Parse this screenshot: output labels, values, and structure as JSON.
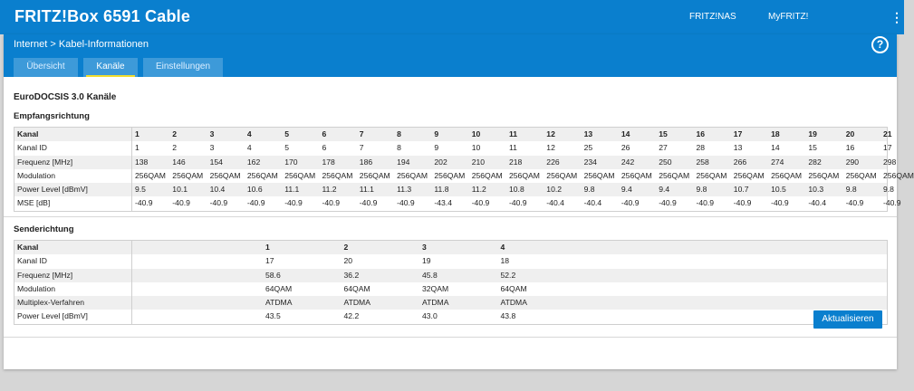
{
  "header": {
    "title": "FRITZ!Box 6591 Cable",
    "nav": [
      "FRITZ!NAS",
      "MyFRITZ!"
    ]
  },
  "breadcrumb": {
    "parent": "Internet",
    "separator": ">",
    "current": "Kabel-Informationen"
  },
  "tabs": [
    {
      "label": "Übersicht",
      "active": false
    },
    {
      "label": "Kanäle",
      "active": true
    },
    {
      "label": "Einstellungen",
      "active": false
    }
  ],
  "section_title": "EuroDOCSIS 3.0 Kanäle",
  "downstream": {
    "title": "Empfangsrichtung",
    "rows": [
      {
        "label": "Kanal",
        "values": [
          "1",
          "2",
          "3",
          "4",
          "5",
          "6",
          "7",
          "8",
          "9",
          "10",
          "11",
          "12",
          "13",
          "14",
          "15",
          "16",
          "17",
          "18",
          "19",
          "20",
          "21"
        ]
      },
      {
        "label": "Kanal ID",
        "values": [
          "1",
          "2",
          "3",
          "4",
          "5",
          "6",
          "7",
          "8",
          "9",
          "10",
          "11",
          "12",
          "25",
          "26",
          "27",
          "28",
          "13",
          "14",
          "15",
          "16",
          "17"
        ]
      },
      {
        "label": "Frequenz [MHz]",
        "values": [
          "138",
          "146",
          "154",
          "162",
          "170",
          "178",
          "186",
          "194",
          "202",
          "210",
          "218",
          "226",
          "234",
          "242",
          "250",
          "258",
          "266",
          "274",
          "282",
          "290",
          "298"
        ]
      },
      {
        "label": "Modulation",
        "values": [
          "256QAM",
          "256QAM",
          "256QAM",
          "256QAM",
          "256QAM",
          "256QAM",
          "256QAM",
          "256QAM",
          "256QAM",
          "256QAM",
          "256QAM",
          "256QAM",
          "256QAM",
          "256QAM",
          "256QAM",
          "256QAM",
          "256QAM",
          "256QAM",
          "256QAM",
          "256QAM",
          "256QAM"
        ]
      },
      {
        "label": "Power Level [dBmV]",
        "values": [
          "9.5",
          "10.1",
          "10.4",
          "10.6",
          "11.1",
          "11.2",
          "11.1",
          "11.3",
          "11.8",
          "11.2",
          "10.8",
          "10.2",
          "9.8",
          "9.4",
          "9.4",
          "9.8",
          "10.7",
          "10.5",
          "10.3",
          "9.8",
          "9.8"
        ]
      },
      {
        "label": "MSE [dB]",
        "values": [
          "-40.9",
          "-40.9",
          "-40.9",
          "-40.9",
          "-40.9",
          "-40.9",
          "-40.9",
          "-40.9",
          "-43.4",
          "-40.9",
          "-40.9",
          "-40.4",
          "-40.4",
          "-40.9",
          "-40.9",
          "-40.9",
          "-40.9",
          "-40.9",
          "-40.4",
          "-40.9",
          "-40.9"
        ]
      }
    ]
  },
  "upstream": {
    "title": "Senderichtung",
    "rows": [
      {
        "label": "Kanal",
        "values": [
          "1",
          "2",
          "3",
          "4"
        ]
      },
      {
        "label": "Kanal ID",
        "values": [
          "17",
          "20",
          "19",
          "18"
        ]
      },
      {
        "label": "Frequenz [MHz]",
        "values": [
          "58.6",
          "36.2",
          "45.8",
          "52.2"
        ]
      },
      {
        "label": "Modulation",
        "values": [
          "64QAM",
          "64QAM",
          "32QAM",
          "64QAM"
        ]
      },
      {
        "label": "Multiplex-Verfahren",
        "values": [
          "ATDMA",
          "ATDMA",
          "ATDMA",
          "ATDMA"
        ]
      },
      {
        "label": "Power Level [dBmV]",
        "values": [
          "43.5",
          "42.2",
          "43.0",
          "43.8"
        ]
      }
    ]
  },
  "button": {
    "label": "Aktualisieren"
  },
  "colors": {
    "primary": "#0a7fce",
    "tab": "#3d9ad9",
    "tab_indicator": "#f2dd2e"
  },
  "icons": [
    "chevron-right-icon",
    "help-icon",
    "kebab-menu-icon"
  ]
}
